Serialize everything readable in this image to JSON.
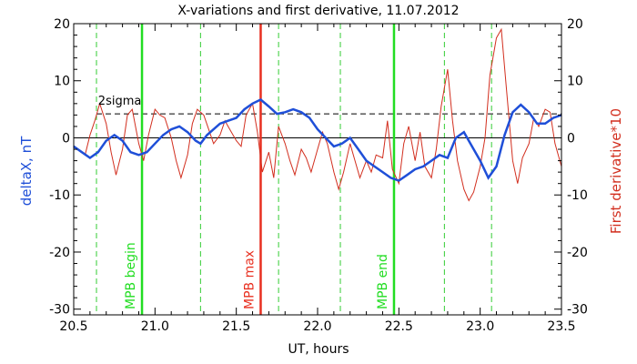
{
  "chart_data": {
    "type": "line",
    "title": "X-variations and first derivative, 11.07.2012",
    "xlabel": "UT, hours",
    "ylabel_left": "deltaX, nT",
    "ylabel_right": "First derivative*10",
    "xlim": [
      20.5,
      23.5
    ],
    "ylim": [
      -31,
      20
    ],
    "x_ticks": [
      "20.5",
      "21.0",
      "21.5",
      "22.0",
      "22.5",
      "23.0",
      "23.5"
    ],
    "y_ticks": [
      "20",
      "10",
      "0",
      "-10",
      "-20",
      "-30"
    ],
    "threshold": {
      "label": "2sigma",
      "y": 4.2
    },
    "markers": [
      {
        "label": "MPB begin",
        "x": 20.92
      },
      {
        "label": "MPB max",
        "x": 21.65
      },
      {
        "label": "MPB end",
        "x": 22.47
      }
    ],
    "dashed_vlines_x": [
      20.64,
      20.92,
      21.28,
      21.76,
      22.14,
      22.47,
      22.78,
      23.07
    ],
    "colors": {
      "deltaX": "#1f4fd8",
      "derivative": "#d22e1e",
      "mpb_edges": "#22dd22",
      "mpb_max": "#e83020",
      "dashed": "#33cc33"
    },
    "series": [
      {
        "name": "deltaX",
        "x": [
          20.5,
          20.55,
          20.6,
          20.65,
          20.7,
          20.75,
          20.8,
          20.85,
          20.9,
          20.95,
          21.0,
          21.05,
          21.1,
          21.15,
          21.2,
          21.25,
          21.28,
          21.32,
          21.36,
          21.4,
          21.45,
          21.5,
          21.55,
          21.6,
          21.65,
          21.7,
          21.75,
          21.8,
          21.85,
          21.9,
          21.95,
          22.0,
          22.05,
          22.1,
          22.15,
          22.2,
          22.25,
          22.3,
          22.35,
          22.4,
          22.45,
          22.5,
          22.55,
          22.6,
          22.65,
          22.7,
          22.75,
          22.8,
          22.85,
          22.9,
          22.95,
          23.0,
          23.05,
          23.1,
          23.15,
          23.2,
          23.25,
          23.3,
          23.35,
          23.4,
          23.45,
          23.5
        ],
        "y": [
          -1.5,
          -2.5,
          -3.5,
          -2.5,
          -0.5,
          0.5,
          -0.5,
          -2.5,
          -3.0,
          -2.5,
          -1.0,
          0.5,
          1.5,
          2.0,
          1.0,
          -0.5,
          -1.0,
          0.5,
          1.5,
          2.5,
          3.0,
          3.5,
          5.0,
          6.0,
          6.7,
          5.5,
          4.2,
          4.5,
          5.0,
          4.5,
          3.5,
          1.5,
          0.0,
          -1.5,
          -1.0,
          0.0,
          -2.0,
          -4.0,
          -5.0,
          -6.0,
          -7.0,
          -7.5,
          -6.5,
          -5.5,
          -5.0,
          -4.0,
          -3.0,
          -3.5,
          0.0,
          1.0,
          -1.5,
          -4.0,
          -7.0,
          -5.0,
          0.5,
          4.5,
          5.8,
          4.5,
          2.5,
          2.5,
          3.5,
          4.0
        ]
      },
      {
        "name": "First derivative*10",
        "x": [
          20.5,
          20.53,
          20.57,
          20.6,
          20.63,
          20.66,
          20.7,
          20.73,
          20.76,
          20.8,
          20.83,
          20.86,
          20.9,
          20.93,
          20.96,
          21.0,
          21.03,
          21.06,
          21.1,
          21.13,
          21.16,
          21.2,
          21.23,
          21.26,
          21.3,
          21.33,
          21.36,
          21.4,
          21.43,
          21.46,
          21.5,
          21.53,
          21.56,
          21.6,
          21.63,
          21.66,
          21.7,
          21.73,
          21.76,
          21.8,
          21.83,
          21.86,
          21.9,
          21.93,
          21.96,
          22.0,
          22.03,
          22.06,
          22.1,
          22.13,
          22.16,
          22.2,
          22.23,
          22.26,
          22.3,
          22.33,
          22.36,
          22.4,
          22.43,
          22.46,
          22.5,
          22.53,
          22.56,
          22.6,
          22.63,
          22.66,
          22.7,
          22.73,
          22.76,
          22.8,
          22.83,
          22.86,
          22.9,
          22.93,
          22.96,
          23.0,
          23.03,
          23.06,
          23.1,
          23.13,
          23.16,
          23.2,
          23.23,
          23.26,
          23.3,
          23.33,
          23.36,
          23.4,
          23.43,
          23.46,
          23.5
        ],
        "y": [
          -1.5,
          -2.0,
          -3.0,
          0.5,
          3.0,
          6.0,
          2.5,
          -2.5,
          -6.5,
          -2.0,
          4.0,
          5.0,
          -1.0,
          -4.0,
          0.5,
          5.0,
          4.0,
          3.5,
          0.0,
          -4.0,
          -7.0,
          -3.0,
          2.5,
          5.0,
          4.0,
          1.5,
          -1.0,
          0.5,
          3.0,
          1.5,
          -0.5,
          -1.5,
          4.0,
          6.0,
          1.0,
          -6.0,
          -2.5,
          -7.0,
          2.0,
          -1.0,
          -4.0,
          -6.5,
          -2.0,
          -3.5,
          -6.0,
          -2.0,
          1.0,
          -1.0,
          -6.0,
          -9.0,
          -6.0,
          -1.0,
          -4.0,
          -7.0,
          -4.0,
          -6.0,
          -3.0,
          -3.5,
          3.0,
          -5.5,
          -8.0,
          -1.0,
          2.0,
          -4.0,
          1.0,
          -5.0,
          -7.0,
          -2.0,
          5.5,
          12.0,
          3.0,
          -4.0,
          -9.0,
          -11.0,
          -9.5,
          -5.0,
          0.0,
          11.0,
          17.5,
          19.0,
          9.0,
          -4.0,
          -8.0,
          -3.5,
          -1.0,
          3.5,
          2.0,
          5.0,
          4.5,
          -1.0,
          -5.0
        ]
      }
    ]
  }
}
